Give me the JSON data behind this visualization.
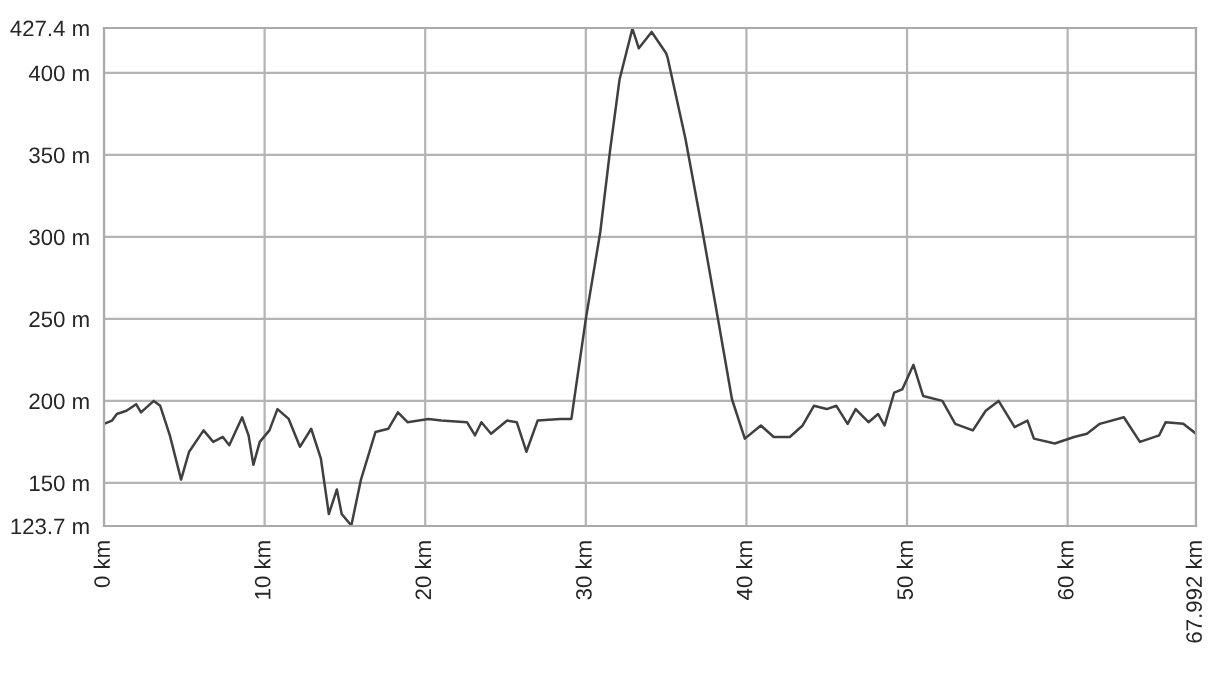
{
  "chart_data": {
    "type": "line",
    "grid": true,
    "marker": "none",
    "line_style": "solid",
    "xlim": [
      0,
      67.992
    ],
    "ylim": [
      123.7,
      427.4
    ],
    "xticks": [
      {
        "value": 0,
        "label": "0 km"
      },
      {
        "value": 10,
        "label": "10 km"
      },
      {
        "value": 20,
        "label": "20 km"
      },
      {
        "value": 30,
        "label": "30 km"
      },
      {
        "value": 40,
        "label": "40 km"
      },
      {
        "value": 50,
        "label": "50 km"
      },
      {
        "value": 60,
        "label": "60 km"
      },
      {
        "value": 67.992,
        "label": "67.992 km"
      }
    ],
    "yticks": [
      {
        "value": 123.7,
        "label": "123.7 m"
      },
      {
        "value": 150,
        "label": "150 m"
      },
      {
        "value": 200,
        "label": "200 m"
      },
      {
        "value": 250,
        "label": "250 m"
      },
      {
        "value": 300,
        "label": "300 m"
      },
      {
        "value": 350,
        "label": "350 m"
      },
      {
        "value": 400,
        "label": "400 m"
      },
      {
        "value": 427.4,
        "label": "427.4 m"
      }
    ],
    "series": [
      {
        "color": "#404040",
        "x": [
          0,
          0.5,
          0.8,
          1.4,
          2.0,
          2.3,
          3.1,
          3.5,
          4.1,
          4.8,
          5.3,
          6.2,
          6.8,
          7.4,
          7.8,
          8.6,
          9.0,
          9.3,
          9.7,
          10.3,
          10.8,
          11.5,
          12.2,
          12.9,
          13.5,
          14.0,
          14.5,
          14.8,
          15.4,
          16.0,
          16.9,
          17.7,
          18.3,
          18.9,
          20.2,
          21.0,
          22.6,
          23.1,
          23.5,
          24.1,
          25.1,
          25.7,
          26.3,
          27.0,
          28.4,
          29.1,
          30.0,
          30.9,
          31.5,
          32.1,
          32.9,
          33.3,
          34.1,
          35.0,
          35.1,
          36.2,
          37.2,
          38.3,
          39.1,
          39.9,
          40.9,
          41.7,
          42.7,
          43.5,
          44.2,
          45.0,
          45.6,
          46.3,
          46.8,
          47.6,
          48.2,
          48.6,
          49.2,
          49.7,
          50.4,
          51.0,
          52.2,
          53.0,
          54.1,
          54.9,
          55.7,
          56.7,
          57.5,
          57.9,
          59.2,
          60.4,
          61.2,
          62.0,
          63.5,
          64.5,
          65.7,
          66.1,
          67.2,
          67.992
        ],
        "values": [
          186,
          188,
          192,
          194,
          198,
          193,
          200,
          197,
          179,
          152,
          169,
          182,
          175,
          178,
          173,
          190,
          179,
          161,
          175,
          182,
          195,
          189,
          172,
          183,
          165,
          131,
          146,
          131,
          124,
          152,
          181,
          183,
          193,
          187,
          189,
          188,
          187,
          179,
          187,
          180,
          188,
          187,
          169,
          188,
          189,
          189,
          250,
          303,
          352,
          396,
          427,
          415,
          425,
          412,
          409,
          360,
          307,
          246,
          201,
          177,
          185,
          178,
          178,
          185,
          197,
          195,
          197,
          186,
          195,
          187,
          192,
          185,
          205,
          207,
          222,
          203,
          200,
          186,
          182,
          194,
          200,
          184,
          188,
          177,
          174,
          178,
          180,
          186,
          190,
          175,
          179,
          187,
          186,
          180
        ]
      }
    ]
  }
}
